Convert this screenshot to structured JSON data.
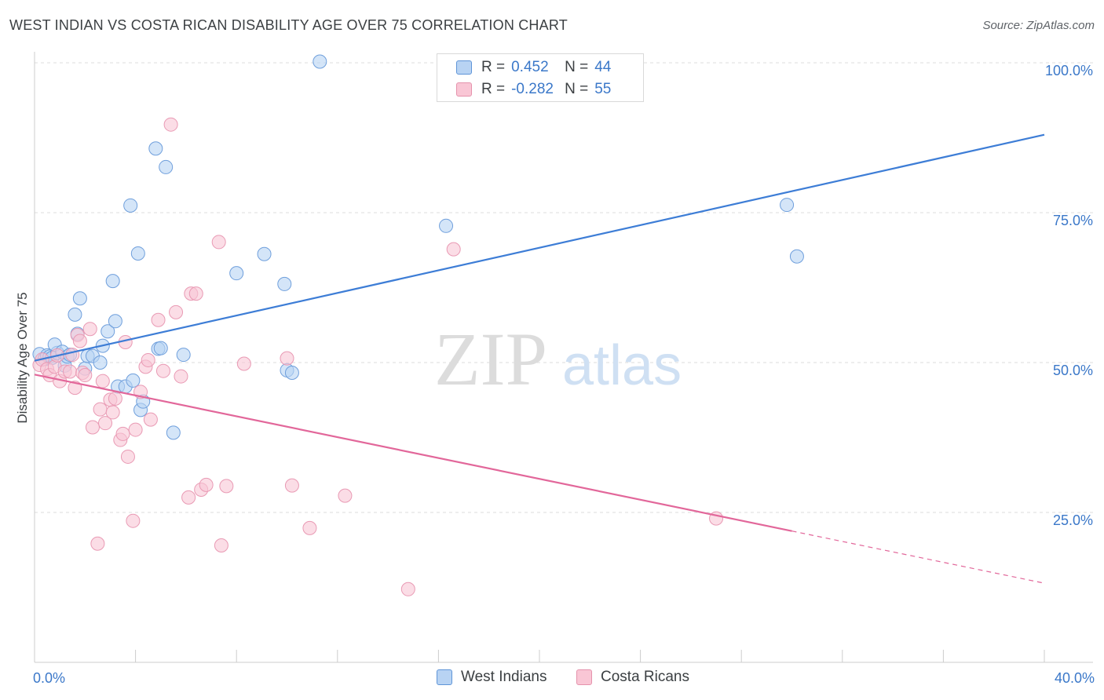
{
  "header": {
    "title": "WEST INDIAN VS COSTA RICAN DISABILITY AGE OVER 75 CORRELATION CHART",
    "source": "Source: ZipAtlas.com"
  },
  "watermark": {
    "zip": "ZIP",
    "atlas": "atlas"
  },
  "legend": {
    "r_label": "R =",
    "n_label": "N =",
    "rows": [
      {
        "r": "0.452",
        "n": "44",
        "fill": "#b8d3f3",
        "stroke": "#5f95d8"
      },
      {
        "r": "-0.282",
        "n": "55",
        "fill": "#f9c6d5",
        "stroke": "#e592ac"
      }
    ]
  },
  "bottom_legend": [
    {
      "label": "West Indians",
      "fill": "#b8d3f3",
      "stroke": "#5f95d8"
    },
    {
      "label": "Costa Ricans",
      "fill": "#f9c6d5",
      "stroke": "#e592ac"
    }
  ],
  "chart_data": {
    "type": "scatter",
    "title": "WEST INDIAN VS COSTA RICAN DISABILITY AGE OVER 75 CORRELATION CHART",
    "xlabel": "",
    "ylabel": "Disability Age Over 75",
    "xlim": [
      0,
      40
    ],
    "ylim": [
      0,
      100
    ],
    "x_tick_labels": [
      "0.0%",
      "40.0%"
    ],
    "y_tick_labels": [
      "25.0%",
      "50.0%",
      "75.0%",
      "100.0%"
    ],
    "y_ticks": [
      25,
      50,
      75,
      100
    ],
    "grid": true,
    "legend_position": "top-center",
    "series": [
      {
        "name": "West Indians",
        "color": "#3d7dd6",
        "fill": "#b8d3f3",
        "r": 0.452,
        "n": 44,
        "trend": {
          "x0": 0,
          "y0": 50.3,
          "x1": 40,
          "y1": 88.0,
          "dashed_from": null
        },
        "points": [
          [
            0.2,
            51.4
          ],
          [
            0.4,
            50.6
          ],
          [
            0.5,
            51.2
          ],
          [
            0.6,
            51.0
          ],
          [
            0.7,
            50.8
          ],
          [
            0.9,
            51.6
          ],
          [
            0.8,
            53.0
          ],
          [
            1.1,
            51.8
          ],
          [
            1.2,
            49.5
          ],
          [
            1.3,
            51.0
          ],
          [
            1.4,
            51.3
          ],
          [
            1.6,
            58.0
          ],
          [
            1.7,
            54.8
          ],
          [
            1.8,
            60.7
          ],
          [
            2.0,
            49.0
          ],
          [
            2.1,
            51.1
          ],
          [
            2.3,
            51.1
          ],
          [
            2.6,
            50.0
          ],
          [
            2.7,
            52.8
          ],
          [
            2.9,
            55.2
          ],
          [
            3.1,
            63.6
          ],
          [
            3.2,
            56.9
          ],
          [
            3.3,
            46.0
          ],
          [
            3.6,
            46.0
          ],
          [
            3.8,
            76.2
          ],
          [
            3.9,
            47.0
          ],
          [
            4.1,
            68.2
          ],
          [
            4.2,
            42.1
          ],
          [
            4.3,
            43.5
          ],
          [
            4.8,
            85.7
          ],
          [
            4.9,
            52.3
          ],
          [
            5.0,
            52.4
          ],
          [
            5.2,
            82.6
          ],
          [
            5.5,
            38.3
          ],
          [
            5.9,
            51.3
          ],
          [
            8.0,
            64.9
          ],
          [
            9.1,
            68.1
          ],
          [
            9.9,
            63.1
          ],
          [
            10.0,
            48.7
          ],
          [
            10.2,
            48.3
          ],
          [
            11.3,
            100.2
          ],
          [
            16.3,
            72.8
          ],
          [
            29.8,
            76.3
          ],
          [
            30.2,
            67.7
          ]
        ]
      },
      {
        "name": "Costa Ricans",
        "color": "#e2679a",
        "fill": "#f9c6d5",
        "r": -0.282,
        "n": 55,
        "trend": {
          "x0": 0,
          "y0": 48.0,
          "x1": 40,
          "y1": 13.2,
          "dashed_from": 30.0
        },
        "points": [
          [
            0.2,
            49.6
          ],
          [
            0.3,
            50.5
          ],
          [
            0.5,
            48.9
          ],
          [
            0.6,
            47.9
          ],
          [
            0.8,
            49.3
          ],
          [
            0.9,
            51.2
          ],
          [
            1.0,
            46.9
          ],
          [
            1.2,
            48.5
          ],
          [
            1.4,
            48.5
          ],
          [
            1.5,
            51.3
          ],
          [
            1.6,
            45.8
          ],
          [
            1.7,
            54.6
          ],
          [
            1.8,
            53.6
          ],
          [
            1.9,
            48.3
          ],
          [
            2.0,
            47.9
          ],
          [
            2.2,
            55.6
          ],
          [
            2.3,
            39.2
          ],
          [
            2.5,
            19.8
          ],
          [
            2.6,
            42.2
          ],
          [
            2.7,
            46.9
          ],
          [
            2.8,
            39.9
          ],
          [
            3.0,
            43.8
          ],
          [
            3.1,
            41.7
          ],
          [
            3.2,
            44.0
          ],
          [
            3.4,
            37.1
          ],
          [
            3.5,
            38.1
          ],
          [
            3.6,
            53.4
          ],
          [
            3.7,
            34.3
          ],
          [
            3.9,
            23.6
          ],
          [
            4.0,
            38.8
          ],
          [
            4.2,
            45.1
          ],
          [
            4.4,
            49.3
          ],
          [
            4.5,
            50.4
          ],
          [
            4.6,
            40.5
          ],
          [
            4.9,
            57.1
          ],
          [
            5.1,
            48.6
          ],
          [
            5.4,
            89.7
          ],
          [
            5.6,
            58.4
          ],
          [
            5.8,
            47.7
          ],
          [
            6.1,
            27.5
          ],
          [
            6.2,
            61.5
          ],
          [
            6.4,
            61.5
          ],
          [
            6.6,
            28.8
          ],
          [
            6.8,
            29.6
          ],
          [
            7.3,
            70.1
          ],
          [
            7.4,
            19.5
          ],
          [
            7.6,
            29.4
          ],
          [
            8.3,
            49.8
          ],
          [
            10.0,
            50.7
          ],
          [
            10.2,
            29.5
          ],
          [
            10.9,
            22.4
          ],
          [
            12.3,
            27.8
          ],
          [
            14.8,
            12.2
          ],
          [
            16.6,
            68.9
          ],
          [
            27.0,
            24.0
          ]
        ]
      }
    ]
  }
}
